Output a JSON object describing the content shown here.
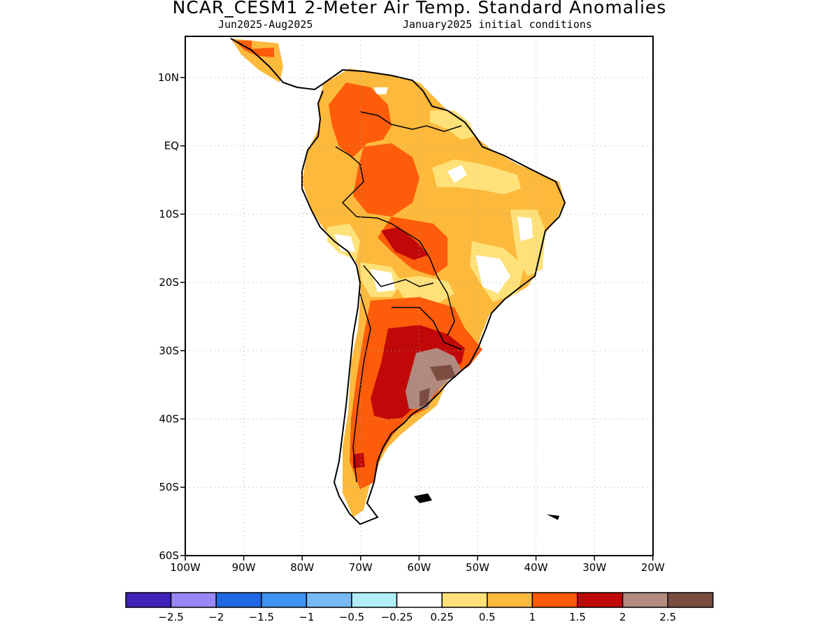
{
  "header": {
    "title": "NCAR_CESM1 2-Meter Air Temp. Standard Anomalies",
    "period": "Jun2025-Aug2025",
    "init": "January2025 initial conditions"
  },
  "map": {
    "lat_labels": [
      "10N",
      "EQ",
      "10S",
      "20S",
      "30S",
      "40S",
      "50S",
      "60S"
    ],
    "lon_labels": [
      "100W",
      "90W",
      "80W",
      "70W",
      "60W",
      "50W",
      "40W",
      "30W",
      "20W"
    ]
  },
  "legend": {
    "colors": [
      "#3f22b8",
      "#9b86f5",
      "#1f68e3",
      "#3d93f0",
      "#78b9f6",
      "#b1eefa",
      "#ffffff",
      "#fee179",
      "#fdb93b",
      "#fd5c0a",
      "#c10808",
      "#b08a7e",
      "#7b4c40"
    ],
    "labels": [
      "-2.5",
      "-2",
      "-1.5",
      "-1",
      "-0.5",
      "-0.25",
      "0.25",
      "0.5",
      "1",
      "1.5",
      "2",
      "2.5"
    ]
  }
}
